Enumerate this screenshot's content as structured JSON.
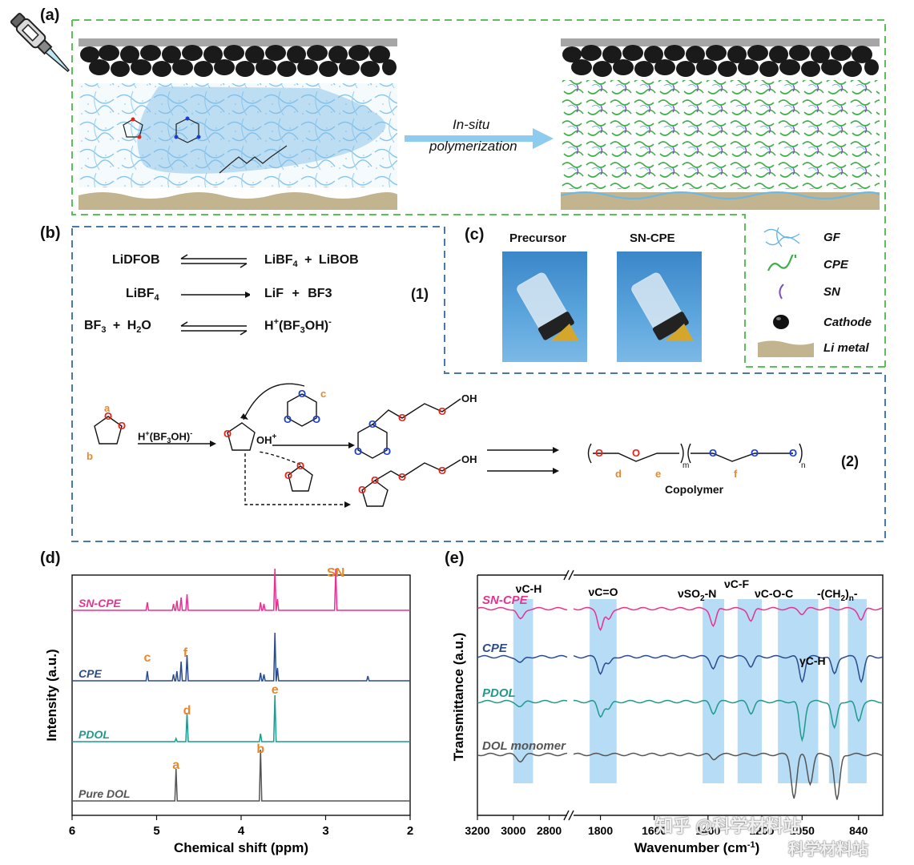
{
  "panels": {
    "a": "(a)",
    "b": "(b)",
    "c": "(c)",
    "d": "(d)",
    "e": "(e)"
  },
  "panel_a": {
    "arrow_label_line1": "In-situ",
    "arrow_label_line2": "polymerization"
  },
  "legend": {
    "items": [
      {
        "label": "GF",
        "icon": "glass-fiber-icon",
        "color": "#5fb3e6"
      },
      {
        "label": "CPE",
        "icon": "cpe-chain-icon",
        "color": "#3fae49"
      },
      {
        "label": "SN",
        "icon": "sn-chain-icon",
        "color": "#7a4fc1"
      },
      {
        "label": "Cathode",
        "icon": "cathode-particle-icon",
        "color": "#111111"
      },
      {
        "label": "Li metal",
        "icon": "li-metal-icon",
        "color": "#c1b48e"
      }
    ]
  },
  "panel_b": {
    "eq1_left": "LiDFOB",
    "eq1_right_a": "LiBF",
    "eq1_right_a_sub": "4",
    "eq1_plus": "+",
    "eq1_right_b": "LiBOB",
    "eq2_left": "LiBF",
    "eq2_left_sub": "4",
    "eq2_right_a": "LiF",
    "eq2_plus": "+",
    "eq2_right_b": "BF3",
    "eq3_left_a": "BF",
    "eq3_left_a_sub": "3",
    "eq3_plus": "+",
    "eq3_left_b": "H",
    "eq3_left_b_sub": "2",
    "eq3_left_b_end": "O",
    "eq3_right": "H",
    "eq3_right_sup": "+",
    "eq3_right_mid": "(BF",
    "eq3_right_sub": "3",
    "eq3_right_end": "OH)",
    "eq3_right_sup2": "-",
    "eq_number_1": "(1)",
    "initiator": "H",
    "initiator_sup": "+",
    "initiator_mid": "(BF",
    "initiator_sub": "3",
    "initiator_end": "OH)",
    "initiator_sup2": "-",
    "oh_plus": "OH",
    "oh_plus_sup": "+",
    "atom_O": "O",
    "atom_OH": "OH",
    "site_a": "a",
    "site_b": "b",
    "site_c": "c",
    "site_d": "d",
    "site_e": "e",
    "site_f": "f",
    "sub_m": "m",
    "sub_n": "n",
    "copolymer": "Copolymer",
    "eq_number_2": "(2)"
  },
  "panel_c": {
    "precursor": "Precursor",
    "sn_cpe": "SN-CPE"
  },
  "colors": {
    "dashed_green": "#5cbf5c",
    "dashed_blue": "#4a79a8",
    "orange": "#e8882a",
    "red_atom": "#e3241b",
    "blue_atom": "#1a3fd0",
    "sn_cpe": "#e6338f",
    "cpe": "#2b4c8c",
    "pdol": "#1f9a8c",
    "dol": "#555555",
    "band": "#b7dcf5"
  },
  "chart_d": {
    "ylabel": "Intensity (a.u.)",
    "xlabel": "Chemical shift (ppm)",
    "ticks": [
      "6",
      "5",
      "4",
      "3",
      "2"
    ],
    "series_labels": [
      "SN-CPE",
      "CPE",
      "PDOL",
      "Pure DOL"
    ],
    "peak_labels": {
      "SN": "SN",
      "c": "c",
      "f": "f",
      "d": "d",
      "e": "e",
      "a": "a",
      "b": "b"
    }
  },
  "chart_e": {
    "ylabel": "Transmittance (a.u.)",
    "xlabel": "Wavenumber (cm",
    "xlabel_sup": "-1",
    "xlabel_end": ")",
    "ticks": [
      "3200",
      "3000",
      "2800",
      "1800",
      "1600",
      "1400",
      "1200",
      "1050",
      "840"
    ],
    "series_labels": [
      "SN-CPE",
      "CPE",
      "PDOL",
      "DOL  monomer"
    ],
    "band_labels": {
      "vch": "νC-H",
      "vco": "νC=O",
      "vso2_a": "νSO",
      "vso2_sub": "2",
      "vso2_b": "-N",
      "vcf": "νC-F",
      "vcoc": "νC-O-C",
      "ch2_a": "-(CH",
      "ch2_sub": "2",
      "ch2_b": ")",
      "ch2_n": "n",
      "ch2_c": "-",
      "gch": "γC-H"
    }
  },
  "chart_data": [
    {
      "type": "line",
      "title": "",
      "xlabel": "Chemical shift (ppm)",
      "ylabel": "Intensity (a.u.)",
      "xlim": [
        6,
        2
      ],
      "series": [
        {
          "name": "SN-CPE",
          "peaks_ppm": [
            5.11,
            4.8,
            4.76,
            4.71,
            4.64,
            3.77,
            3.73,
            3.6,
            3.57,
            2.88
          ]
        },
        {
          "name": "CPE",
          "peaks_ppm": [
            5.11,
            4.8,
            4.76,
            4.71,
            4.64,
            3.77,
            3.73,
            3.6,
            3.57,
            2.5
          ]
        },
        {
          "name": "PDOL",
          "peaks_ppm": [
            4.77,
            4.64,
            3.77,
            3.6
          ]
        },
        {
          "name": "Pure DOL",
          "peaks_ppm": [
            4.77,
            3.77
          ]
        }
      ]
    },
    {
      "type": "line",
      "title": "",
      "xlabel": "Wavenumber (cm-1)",
      "ylabel": "Transmittance (a.u.)",
      "xlim": [
        3200,
        750
      ],
      "series": [
        {
          "name": "SN-CPE"
        },
        {
          "name": "CPE"
        },
        {
          "name": "PDOL"
        },
        {
          "name": "DOL  monomer"
        }
      ]
    }
  ],
  "watermark": {
    "line1": "知乎 @科学材料站",
    "line2": "科学材料站"
  }
}
